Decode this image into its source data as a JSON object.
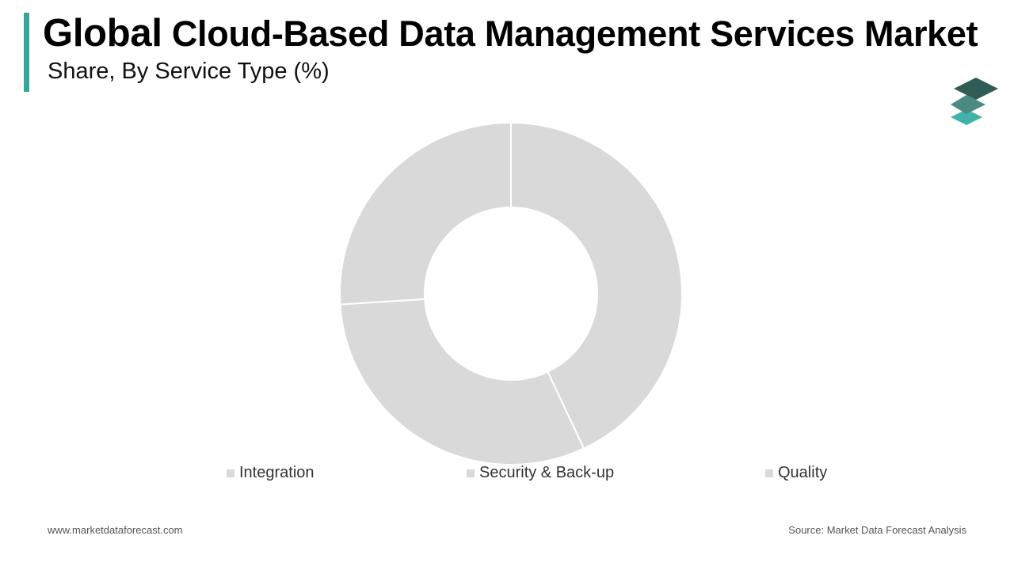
{
  "header": {
    "title_first": "Global",
    "title_rest": "Cloud-Based Data Management Services Market",
    "subtitle": "Share, By Service Type (%)"
  },
  "colors": {
    "accent": "#3aa39a",
    "slice": "#d9d9d9",
    "slice_border": "#ffffff",
    "logo_dark": "#2f5d55",
    "logo_mid": "#4a8a80",
    "logo_light": "#3fb3a8"
  },
  "icons": {
    "logo": "stacked-layers-icon"
  },
  "chart_data": {
    "type": "pie",
    "donut": true,
    "categories": [
      "Integration",
      "Security & Back-up",
      "Quality"
    ],
    "values": [
      43,
      31,
      26
    ],
    "legend_position": "bottom"
  },
  "footer": {
    "website": "www.marketdataforecast.com",
    "source": "Source: Market Data Forecast Analysis"
  }
}
